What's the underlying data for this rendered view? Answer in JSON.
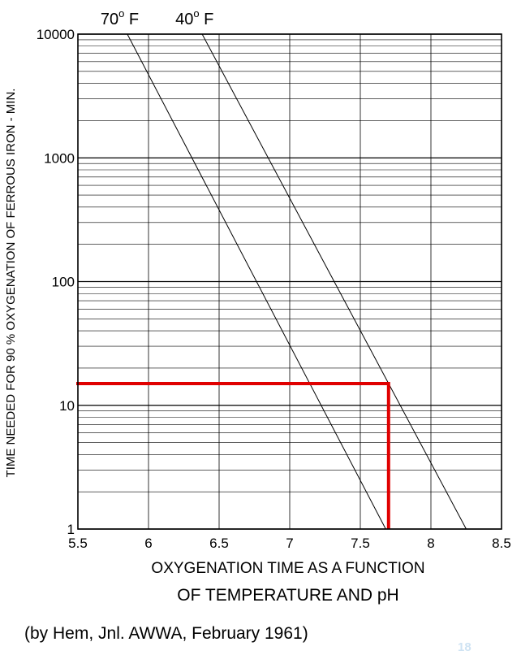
{
  "chart_data": {
    "type": "line",
    "title": "OXYGENATION TIME AS A FUNCTION",
    "subtitle": "OF TEMPERATURE AND pH",
    "xlabel": "",
    "ylabel": "TIME NEEDED FOR 90 % OXYGENATION OF FERROUS IRON - MIN.",
    "xlim": [
      5.5,
      8.5
    ],
    "ylim": [
      1,
      10000
    ],
    "yscale": "log",
    "grid": true,
    "x_ticks": [
      "5.5",
      "6",
      "6.5",
      "7",
      "7.5",
      "8",
      "8.5"
    ],
    "y_ticks": [
      "1",
      "10",
      "100",
      "1000",
      "10000"
    ],
    "series": [
      {
        "name": "70° F",
        "label_main": "70",
        "label_sup": "o",
        "label_unit": " F",
        "color": "#000000",
        "points": [
          [
            5.85,
            10000
          ],
          [
            7.68,
            1
          ]
        ]
      },
      {
        "name": "40° F",
        "label_main": "40",
        "label_sup": "o",
        "label_unit": " F",
        "color": "#000000",
        "points": [
          [
            6.38,
            10000
          ],
          [
            8.25,
            1
          ]
        ]
      }
    ],
    "annotations": [
      {
        "type": "reference-lines",
        "color": "#e00000",
        "x": 7.7,
        "y": 15
      }
    ]
  },
  "credit": "(by Hem, Jnl. AWWA, February 1961)",
  "page_number": "18"
}
